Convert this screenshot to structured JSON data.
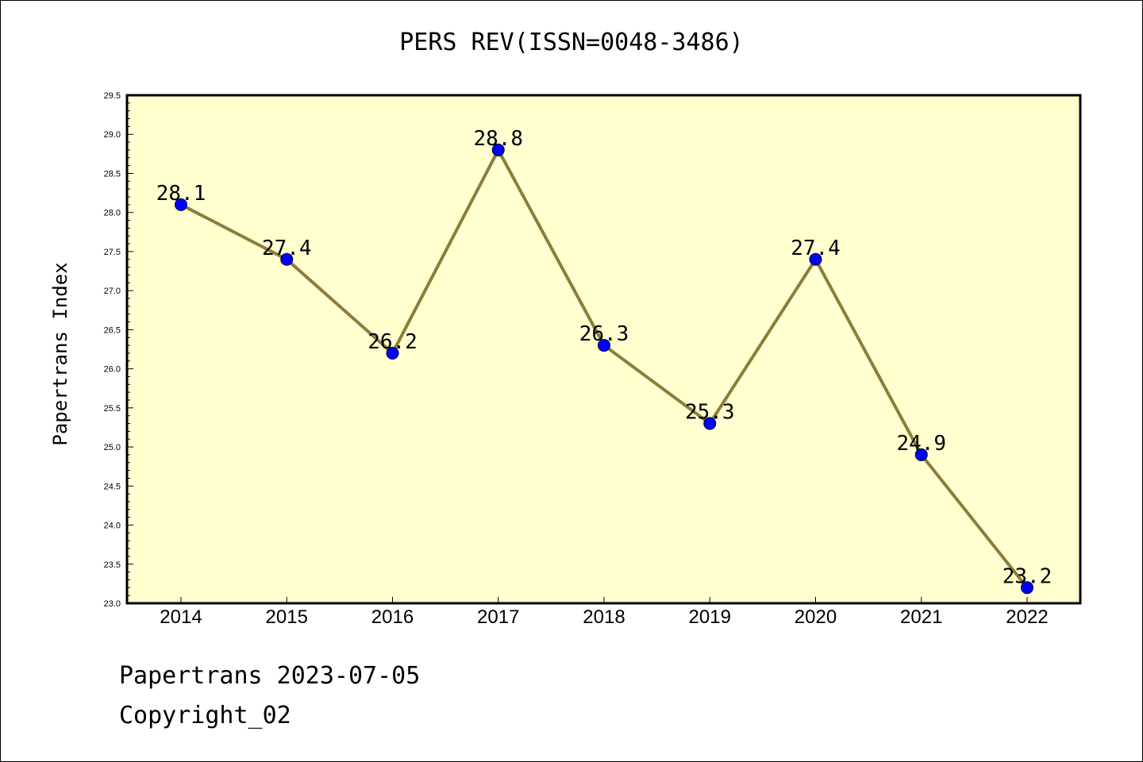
{
  "chart_data": {
    "type": "line",
    "title": "PERS REV(ISSN=0048-3486)",
    "xlabel": "",
    "ylabel": "Papertrans Index",
    "categories": [
      "2014",
      "2015",
      "2016",
      "2017",
      "2018",
      "2019",
      "2020",
      "2021",
      "2022"
    ],
    "series": [
      {
        "values": [
          28.1,
          27.4,
          26.2,
          28.8,
          26.3,
          25.3,
          27.4,
          24.9,
          23.2
        ]
      }
    ],
    "data_labels": [
      "28.1",
      "27.4",
      "26.2",
      "28.8",
      "26.3",
      "25.3",
      "27.4",
      "24.9",
      "23.2"
    ],
    "ylim": [
      23.0,
      29.5
    ],
    "yticks": [
      "23.0",
      "23.5",
      "24.0",
      "24.5",
      "25.0",
      "25.5",
      "26.0",
      "26.5",
      "27.0",
      "27.5",
      "28.0",
      "28.5",
      "29.0",
      "29.5"
    ],
    "grid": false,
    "colors": {
      "plot_bg": "#ffffd0",
      "line": "#8b7d3a",
      "marker": "#0000ff"
    }
  },
  "footer": {
    "line1": "Papertrans 2023-07-05",
    "line2": "Copyright_02"
  }
}
